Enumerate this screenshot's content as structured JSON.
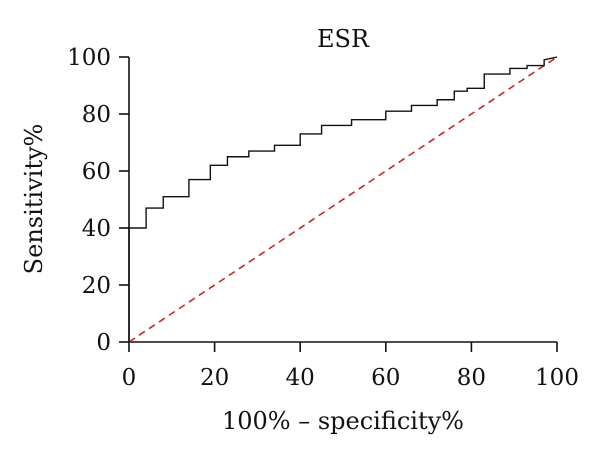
{
  "chart_data": {
    "type": "line",
    "title": "ESR",
    "xlabel": "100% – specificity%",
    "ylabel": "Sensitivity%",
    "xlim": [
      0,
      100
    ],
    "ylim": [
      0,
      100
    ],
    "xticks": [
      0,
      20,
      40,
      60,
      80,
      100
    ],
    "yticks": [
      0,
      20,
      40,
      60,
      80,
      100
    ],
    "grid": false,
    "legend": "none",
    "series": [
      {
        "style": "step",
        "color": "#111111",
        "x": [
          0,
          0,
          4,
          4,
          8,
          8,
          14,
          14,
          19,
          19,
          23,
          23,
          28,
          28,
          34,
          34,
          40,
          40,
          45,
          45,
          52,
          52,
          60,
          60,
          66,
          66,
          72,
          72,
          76,
          76,
          79,
          79,
          83,
          83,
          89,
          89,
          93,
          93,
          97,
          97,
          100
        ],
        "y": [
          0,
          40,
          40,
          47,
          47,
          51,
          51,
          57,
          57,
          62,
          62,
          65,
          65,
          67,
          67,
          69,
          69,
          73,
          73,
          76,
          76,
          78,
          78,
          81,
          81,
          83,
          83,
          85,
          85,
          88,
          88,
          89,
          89,
          94,
          94,
          96,
          96,
          97,
          97,
          99,
          100
        ]
      },
      {
        "style": "dashed",
        "color": "#c62828",
        "x": [
          0,
          100
        ],
        "y": [
          0,
          100
        ]
      }
    ]
  }
}
